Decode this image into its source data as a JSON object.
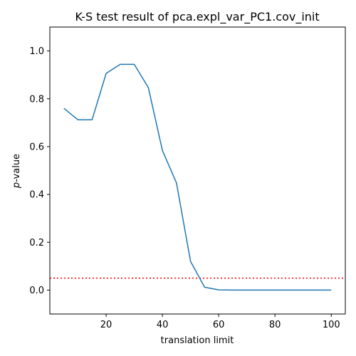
{
  "chart_data": {
    "type": "line",
    "title": "K-S test result of pca.expl_var_PC1.cov_init",
    "xlabel": "translation limit",
    "ylabel_italic": "p",
    "ylabel_rest": "-value",
    "xlim": [
      0,
      105
    ],
    "ylim": [
      -0.1,
      1.1
    ],
    "xticks": [
      20,
      40,
      60,
      80,
      100
    ],
    "yticks": [
      0.0,
      0.2,
      0.4,
      0.6,
      0.8,
      1.0
    ],
    "grid": false,
    "series": [
      {
        "color": "#1f77b4",
        "x": [
          5,
          10,
          15,
          20,
          25,
          30,
          35,
          40,
          45,
          50,
          55,
          60,
          65,
          70,
          75,
          80,
          85,
          90,
          95,
          100
        ],
        "y": [
          0.76,
          0.712,
          0.712,
          0.906,
          0.944,
          0.944,
          0.847,
          0.584,
          0.448,
          0.12,
          0.012,
          0.001,
          0.0,
          0.0,
          0.0,
          0.0,
          0.0,
          0.0,
          0.0,
          0.0
        ]
      }
    ],
    "threshold": {
      "y": 0.05,
      "color": "#ff0000",
      "style": "dotted"
    }
  }
}
